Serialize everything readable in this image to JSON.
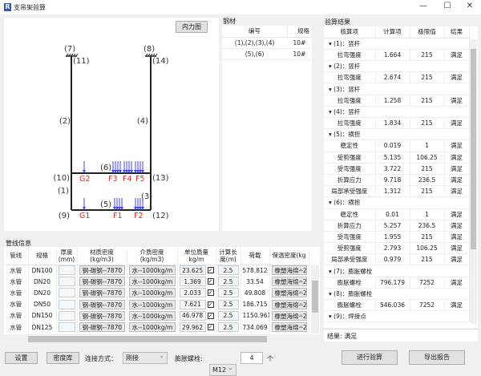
{
  "window": {
    "title": "支吊架验算",
    "icon": "R",
    "minimize": "—",
    "maximize": "☐",
    "close": "✕"
  },
  "diagram": {
    "button": "内力图",
    "node_labels": [
      "(7)",
      "(8)",
      "(11)",
      "(14)",
      "(2)",
      "(4)",
      "(6)",
      "(10)",
      "(13)",
      "(1)",
      "(3)",
      "(9)",
      "(5)",
      "(12)"
    ],
    "loads": [
      "G2",
      "F3",
      "F4",
      "F5",
      "G1",
      "F1",
      "F2"
    ],
    "load_color": "#f02020",
    "arrow_color": "#4040ff"
  },
  "steel": {
    "title": "钢材",
    "headers": [
      "编号",
      "规格"
    ],
    "rows": [
      [
        "(1),(2),(3),(4)",
        "10#"
      ],
      [
        "(5),(6)",
        "10#"
      ]
    ]
  },
  "results": {
    "title": "验算结果",
    "headers": [
      "核算项",
      "计算项",
      "极限值",
      "结果"
    ],
    "groups": [
      {
        "label": "(1)：竖杆",
        "rows": [
          [
            "拉弯强度",
            "1.664",
            "215",
            "满足"
          ]
        ]
      },
      {
        "label": "(2)：竖杆",
        "rows": [
          [
            "拉弯强度",
            "2.674",
            "215",
            "满足"
          ]
        ]
      },
      {
        "label": "(3)：竖杆",
        "rows": [
          [
            "拉弯强度",
            "1.258",
            "215",
            "满足"
          ]
        ]
      },
      {
        "label": "(4)：竖杆",
        "rows": [
          [
            "拉弯强度",
            "1.834",
            "215",
            "满足"
          ]
        ]
      },
      {
        "label": "(5)：横担",
        "rows": [
          [
            "稳定性",
            "0.019",
            "1",
            "满足"
          ],
          [
            "受剪强度",
            "5.135",
            "106.25",
            "满足"
          ],
          [
            "受弯强度",
            "3.722",
            "215",
            "满足"
          ],
          [
            "折算应力",
            "9.718",
            "236.5",
            "满足"
          ],
          [
            "局部承受强度",
            "1.312",
            "215",
            "满足"
          ]
        ]
      },
      {
        "label": "(6)：横担",
        "rows": [
          [
            "稳定性",
            "0.01",
            "1",
            "满足"
          ],
          [
            "折算应力",
            "5.257",
            "236.5",
            "满足"
          ],
          [
            "受弯强度",
            "1.955",
            "215",
            "满足"
          ],
          [
            "受剪强度",
            "2.793",
            "106.25",
            "满足"
          ],
          [
            "局部承受强度",
            "0.979",
            "215",
            "满足"
          ]
        ]
      },
      {
        "label": "(7)：膨胀螺栓",
        "rows": [
          [
            "膨胀螺栓",
            "796.179",
            "7252",
            "满足"
          ]
        ]
      },
      {
        "label": "(8)：膨胀螺栓",
        "rows": [
          [
            "膨胀螺栓",
            "546.036",
            "7252",
            "满足"
          ]
        ]
      },
      {
        "label": "(9)：焊接点",
        "rows": []
      }
    ],
    "summary": "结果: 满足"
  },
  "pipes": {
    "title": "管线信息",
    "headers": [
      "管线",
      "规格",
      "厚度\n(mm)",
      "材质密度(kg/m3)",
      "介质密度(kg/m3)",
      "单位质量kg/m",
      "计算长\n度(m)",
      "荷载",
      "保温密度(kg"
    ],
    "rows": [
      [
        "水管",
        "DN100",
        "",
        "钢-碳钢--7870",
        "水--1000kg/m",
        "23.625",
        true,
        "2.5",
        "578.812",
        "橡塑海绵--2"
      ],
      [
        "水管",
        "DN20",
        "",
        "钢-碳钢--7870",
        "水--1000kg/m",
        "1.369",
        true,
        "2.5",
        "33.54",
        "橡塑海绵--2"
      ],
      [
        "水管",
        "DN20",
        "",
        "钢-碳钢--7870",
        "水--1000kg/m",
        "2.033",
        true,
        "2.5",
        "49.808",
        "橡塑海绵--2"
      ],
      [
        "水管",
        "DN50",
        "",
        "钢-碳钢--7870",
        "水--1000kg/m",
        "7.621",
        true,
        "2.5",
        "186.715",
        "橡塑海绵--2"
      ],
      [
        "水管",
        "DN150",
        "",
        "钢-碳钢--7870",
        "水--1000kg/m",
        "46.978",
        true,
        "2.5",
        "1150.961",
        "橡塑海绵--2"
      ],
      [
        "水管",
        "DN125",
        "",
        "钢-碳钢--7870",
        "水--1000kg/m",
        "29.962",
        true,
        "2.5",
        "734.069",
        "橡塑海绵--2"
      ]
    ]
  },
  "bottom": {
    "settings": "设置",
    "density_lib": "密度库",
    "connection_label": "连接方式：",
    "connection_value": "刚接",
    "bolt_label": "膨胀螺栓:",
    "bolt_value": "M12",
    "bolt_count": "4",
    "bolt_unit": "个",
    "run": "进行验算",
    "export": "导出报告"
  }
}
